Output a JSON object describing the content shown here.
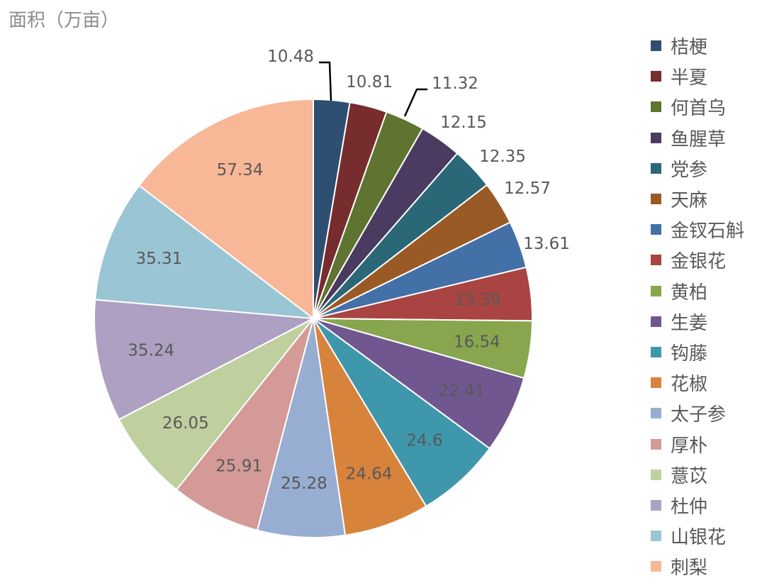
{
  "chart_data": {
    "type": "pie",
    "title": "面积（万亩）",
    "legend_position": "right",
    "start_angle_deg": 0,
    "direction": "clockwise",
    "slices": [
      {
        "name": "桔梗",
        "value": 10.48,
        "label": "10.48",
        "color": "#2E4E72"
      },
      {
        "name": "半夏",
        "value": 10.81,
        "label": "10.81",
        "color": "#772C2E"
      },
      {
        "name": "何首乌",
        "value": 11.32,
        "label": "11.32",
        "color": "#5E7430"
      },
      {
        "name": "鱼腥草",
        "value": 12.15,
        "label": "12.15",
        "color": "#4B3B61"
      },
      {
        "name": "党参",
        "value": 12.35,
        "label": "12.35",
        "color": "#2A6878"
      },
      {
        "name": "天麻",
        "value": 12.57,
        "label": "12.57",
        "color": "#9A5A26"
      },
      {
        "name": "金钗石斛",
        "value": 13.61,
        "label": "13.61",
        "color": "#4470A8"
      },
      {
        "name": "金银花",
        "value": 15.39,
        "label": "15.39",
        "color": "#A94442"
      },
      {
        "name": "黄柏",
        "value": 16.54,
        "label": "16.54",
        "color": "#87A64D"
      },
      {
        "name": "生姜",
        "value": 22.41,
        "label": "22.41",
        "color": "#71578F"
      },
      {
        "name": "钩藤",
        "value": 24.6,
        "label": "24.6",
        "color": "#3F97AC"
      },
      {
        "name": "花椒",
        "value": 24.64,
        "label": "24.64",
        "color": "#D8833C"
      },
      {
        "name": "太子参",
        "value": 25.28,
        "label": "25.28",
        "color": "#97ADD2"
      },
      {
        "name": "厚朴",
        "value": 25.91,
        "label": "25.91",
        "color": "#D49A98"
      },
      {
        "name": "薏苡",
        "value": 26.05,
        "label": "26.05",
        "color": "#BFD09E"
      },
      {
        "name": "杜仲",
        "value": 35.24,
        "label": "35.24",
        "color": "#ADA0C2"
      },
      {
        "name": "山银花",
        "value": 35.31,
        "label": "35.31",
        "color": "#9AC5D4"
      },
      {
        "name": "刺梨",
        "value": 57.34,
        "label": "57.34",
        "color": "#F8B796"
      }
    ]
  }
}
